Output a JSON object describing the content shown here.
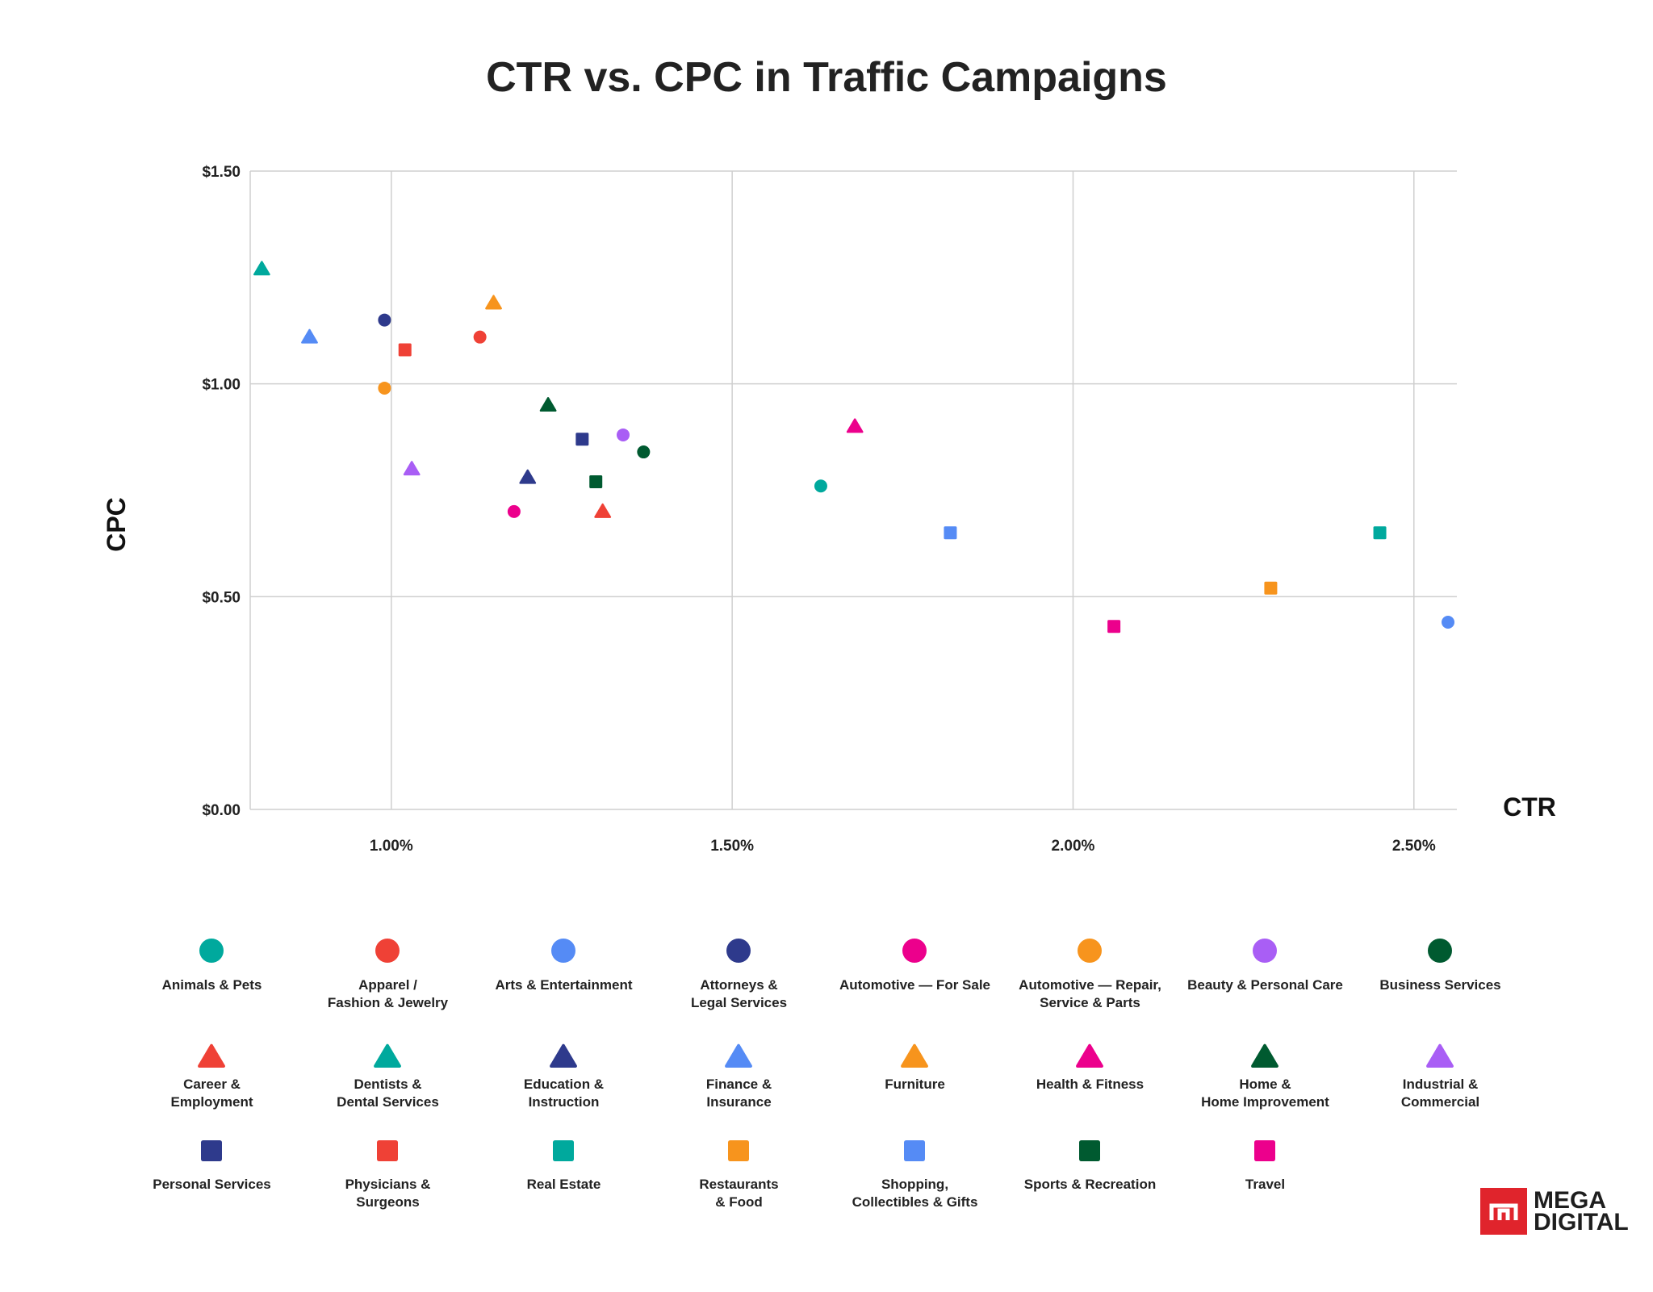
{
  "chart_data": {
    "type": "scatter",
    "title": "CTR vs. CPC in Traffic Campaigns",
    "xlabel": "CTR",
    "ylabel": "CPC",
    "xlim": [
      0.793,
      2.563
    ],
    "ylim": [
      0,
      1.5
    ],
    "x_ticks": [
      {
        "v": 1.0,
        "label": "1.00%"
      },
      {
        "v": 1.5,
        "label": "1.50%"
      },
      {
        "v": 2.0,
        "label": "2.00%"
      },
      {
        "v": 2.5,
        "label": "2.50%"
      }
    ],
    "y_ticks": [
      {
        "v": 0,
        "label": "$0.00"
      },
      {
        "v": 0.5,
        "label": "$0.50"
      },
      {
        "v": 1.0,
        "label": "$1.00"
      },
      {
        "v": 1.5,
        "label": "$1.50"
      }
    ],
    "grid": true,
    "legend_placement": "bottom",
    "series": [
      {
        "name": "Animals & Pets",
        "color": "#00A99D",
        "shape": "circle",
        "x": 1.63,
        "y": 0.76
      },
      {
        "name": "Apparel /\nFashion & Jewelry",
        "color": "#EF4136",
        "shape": "circle",
        "x": 1.13,
        "y": 1.11
      },
      {
        "name": "Arts & Entertainment",
        "color": "#558BF5",
        "shape": "circle",
        "x": 2.55,
        "y": 0.44
      },
      {
        "name": "Attorneys &\nLegal Services",
        "color": "#2E3A8C",
        "shape": "circle",
        "x": 0.99,
        "y": 1.15
      },
      {
        "name": "Automotive — For Sale",
        "color": "#EC008C",
        "shape": "circle",
        "x": 1.18,
        "y": 0.7
      },
      {
        "name": "Automotive — Repair,\nService & Parts",
        "color": "#F7941D",
        "shape": "circle",
        "x": 0.99,
        "y": 0.99
      },
      {
        "name": "Beauty & Personal Care",
        "color": "#A95EF5",
        "shape": "circle",
        "x": 1.34,
        "y": 0.88
      },
      {
        "name": "Business Services",
        "color": "#005A30",
        "shape": "circle",
        "x": 1.37,
        "y": 0.84
      },
      {
        "name": "Career &\nEmployment",
        "color": "#EF4136",
        "shape": "triangle",
        "x": 1.31,
        "y": 0.7
      },
      {
        "name": "Dentists &\nDental Services",
        "color": "#00A99D",
        "shape": "triangle",
        "x": 0.81,
        "y": 1.27
      },
      {
        "name": "Education &\nInstruction",
        "color": "#2E3A8C",
        "shape": "triangle",
        "x": 1.2,
        "y": 0.78
      },
      {
        "name": "Finance &\nInsurance",
        "color": "#558BF5",
        "shape": "triangle",
        "x": 0.88,
        "y": 1.11
      },
      {
        "name": "Furniture",
        "color": "#F7941D",
        "shape": "triangle",
        "x": 1.15,
        "y": 1.19
      },
      {
        "name": "Health & Fitness",
        "color": "#EC008C",
        "shape": "triangle",
        "x": 1.68,
        "y": 0.9
      },
      {
        "name": "Home &\nHome Improvement",
        "color": "#005A30",
        "shape": "triangle",
        "x": 1.23,
        "y": 0.95
      },
      {
        "name": "Industrial &\nCommercial",
        "color": "#A95EF5",
        "shape": "triangle",
        "x": 1.03,
        "y": 0.8
      },
      {
        "name": "Personal Services",
        "color": "#2E3A8C",
        "shape": "square",
        "x": 1.28,
        "y": 0.87
      },
      {
        "name": "Physicians &\nSurgeons",
        "color": "#EF4136",
        "shape": "square",
        "x": 1.02,
        "y": 1.08
      },
      {
        "name": "Real Estate",
        "color": "#00A99D",
        "shape": "square",
        "x": 2.45,
        "y": 0.65
      },
      {
        "name": "Restaurants\n& Food",
        "color": "#F7941D",
        "shape": "square",
        "x": 2.29,
        "y": 0.52
      },
      {
        "name": "Shopping,\nCollectibles & Gifts",
        "color": "#558BF5",
        "shape": "square",
        "x": 1.82,
        "y": 0.65
      },
      {
        "name": "Sports & Recreation",
        "color": "#005A30",
        "shape": "square",
        "x": 1.3,
        "y": 0.77
      },
      {
        "name": "Travel",
        "color": "#EC008C",
        "shape": "square",
        "x": 2.06,
        "y": 0.43
      }
    ]
  },
  "logo": {
    "line1": "MEGA",
    "line2": "DIGITAL"
  }
}
